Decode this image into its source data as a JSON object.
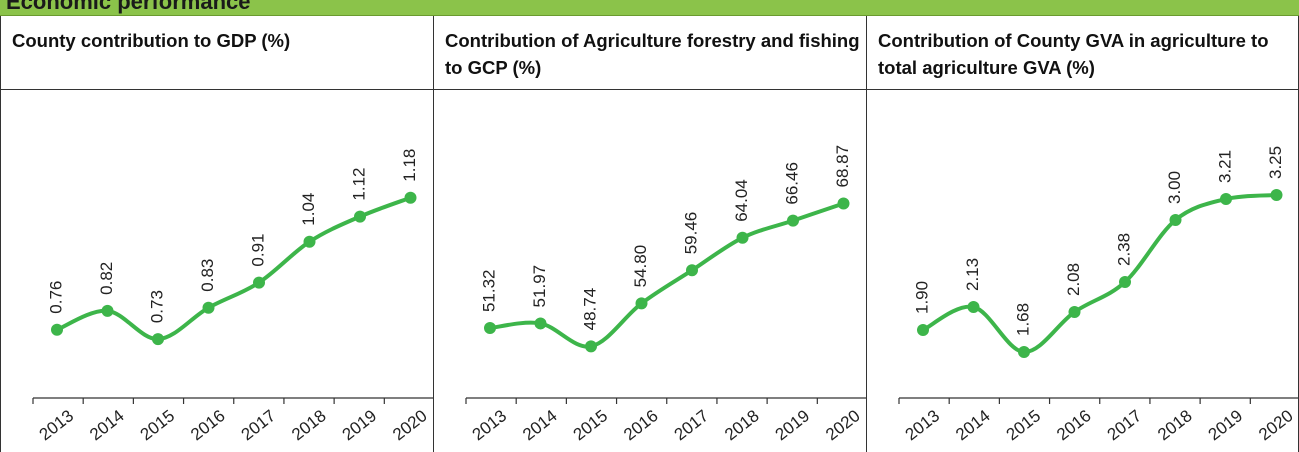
{
  "banner": {
    "title": "Economic performance"
  },
  "line_color": "#3db54a",
  "chart_data": [
    {
      "type": "line",
      "title": "County contribution to GDP (%)",
      "x": [
        "2013",
        "2014",
        "2015",
        "2016",
        "2017",
        "2018",
        "2019",
        "2020"
      ],
      "values": [
        0.76,
        0.82,
        0.73,
        0.83,
        0.91,
        1.04,
        1.12,
        1.18
      ],
      "labels": [
        "0.76",
        "0.82",
        "0.73",
        "0.83",
        "0.91",
        "1.04",
        "1.12",
        "1.18"
      ],
      "ylim": [
        0.6,
        1.3
      ],
      "grid": false,
      "legend": "none"
    },
    {
      "type": "line",
      "title": "Contribution of Agriculture forestry and fishing to GCP (%)",
      "x": [
        "2013",
        "2014",
        "2015",
        "2016",
        "2017",
        "2018",
        "2019",
        "2020"
      ],
      "values": [
        51.32,
        51.97,
        48.74,
        54.8,
        59.46,
        64.04,
        66.46,
        68.87
      ],
      "labels": [
        "51.32",
        "51.97",
        "48.74",
        "54.80",
        "59.46",
        "64.04",
        "66.46",
        "68.87"
      ],
      "ylim": [
        44,
        75
      ],
      "grid": false,
      "legend": "none"
    },
    {
      "type": "line",
      "title": "Contribution of County GVA in agriculture to total agriculture GVA (%)",
      "x": [
        "2013",
        "2014",
        "2015",
        "2016",
        "2017",
        "2018",
        "2019",
        "2020"
      ],
      "values": [
        1.9,
        2.13,
        1.68,
        2.08,
        2.38,
        3.0,
        3.21,
        3.25
      ],
      "labels": [
        "1.90",
        "2.13",
        "1.68",
        "2.08",
        "2.38",
        "3.00",
        "3.21",
        "3.25"
      ],
      "ylim": [
        1.4,
        3.6
      ],
      "grid": false,
      "legend": "none"
    }
  ]
}
